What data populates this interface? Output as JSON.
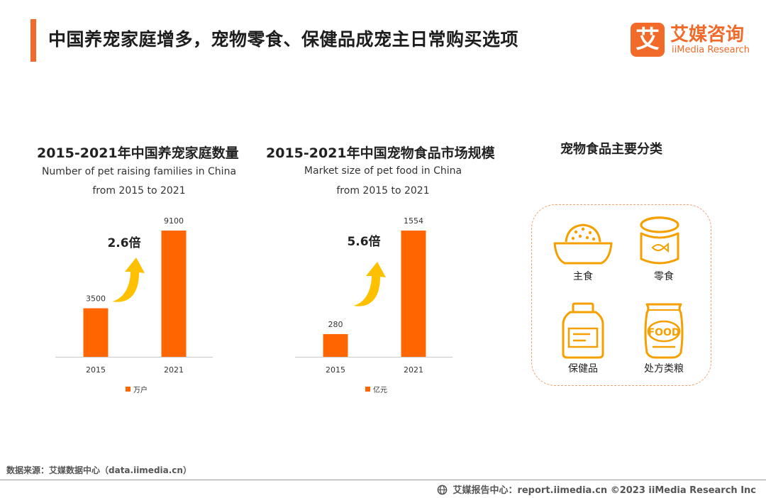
{
  "header": {
    "title": "中国养宠家庭增多，宠物零食、保健品成宠主日常购买选项",
    "logo_cn": "艾媒咨询",
    "logo_en": "iiMedia Research",
    "logo_mark": "艾"
  },
  "colors": {
    "accent": "#f26a2a",
    "bar": "#ff6600",
    "arrow": "#ffc000",
    "icon": "#f5a000"
  },
  "chart_data": [
    {
      "type": "bar",
      "title": "2015-2021年中国养宠家庭数量",
      "subtitle_line1": "Number of pet raising families in China",
      "subtitle_line2": "from 2015 to 2021",
      "categories": [
        "2015",
        "2021"
      ],
      "values": [
        3500,
        9100
      ],
      "value_labels": [
        "3500",
        "9100"
      ],
      "legend": "万户",
      "annotation": "2.6倍",
      "ylim": [
        0,
        9100
      ]
    },
    {
      "type": "bar",
      "title": "2015-2021年中国宠物食品市场规模",
      "subtitle_line1": "Market size of pet food in China",
      "subtitle_line2": "from 2015 to 2021",
      "categories": [
        "2015",
        "2021"
      ],
      "values": [
        280,
        1554
      ],
      "value_labels": [
        "280",
        "1554"
      ],
      "legend": "亿元",
      "annotation": "5.6倍",
      "ylim": [
        0,
        1554
      ]
    }
  ],
  "categories_panel": {
    "title": "宠物食品主要分类",
    "items": [
      {
        "label": "主食",
        "icon": "food-bowl-icon"
      },
      {
        "label": "零食",
        "icon": "snack-can-icon"
      },
      {
        "label": "保健品",
        "icon": "supplement-jar-icon"
      },
      {
        "label": "处方类粮",
        "icon": "prescription-food-bag-icon",
        "badge_text": "FOOD"
      }
    ]
  },
  "footer": {
    "source": "数据来源：艾媒数据中心（data.iimedia.cn）",
    "right": "艾媒报告中心：report.iimedia.cn  ©2023  iiMedia Research Inc"
  }
}
